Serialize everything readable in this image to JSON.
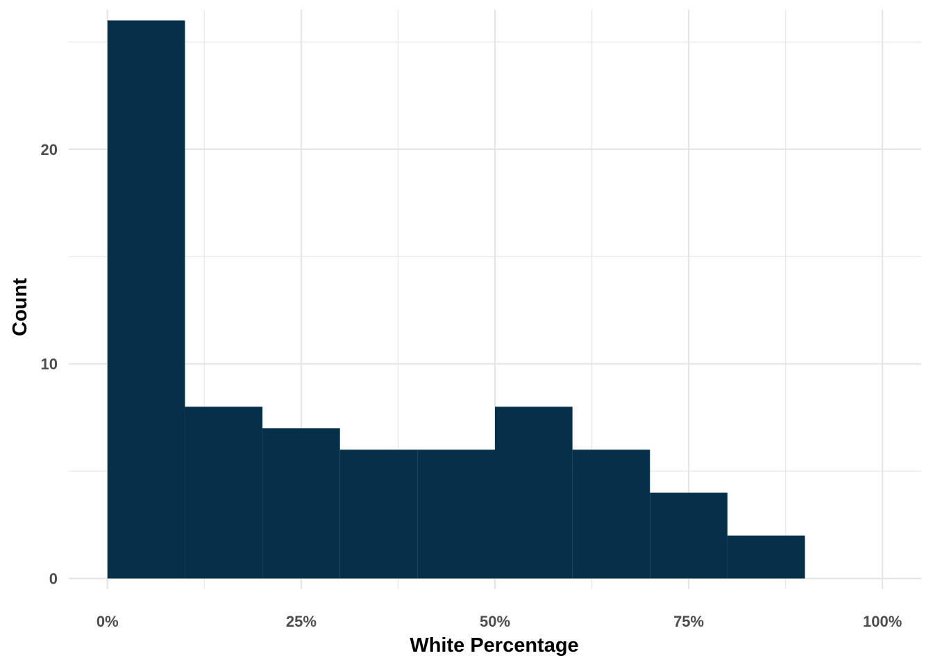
{
  "chart_data": {
    "type": "bar",
    "subtype": "histogram",
    "xlabel": "White Percentage",
    "ylabel": "Count",
    "bin_width": 0.1,
    "bins": [
      {
        "x0": 0.0,
        "x1": 0.1,
        "count": 26
      },
      {
        "x0": 0.1,
        "x1": 0.2,
        "count": 8
      },
      {
        "x0": 0.2,
        "x1": 0.3,
        "count": 7
      },
      {
        "x0": 0.3,
        "x1": 0.4,
        "count": 6
      },
      {
        "x0": 0.4,
        "x1": 0.5,
        "count": 6
      },
      {
        "x0": 0.5,
        "x1": 0.6,
        "count": 8
      },
      {
        "x0": 0.6,
        "x1": 0.7,
        "count": 6
      },
      {
        "x0": 0.7,
        "x1": 0.8,
        "count": 4
      },
      {
        "x0": 0.8,
        "x1": 0.9,
        "count": 2
      }
    ],
    "xlim": [
      -0.05,
      1.05
    ],
    "ylim": [
      -0.5,
      26.5
    ],
    "x_ticks": [
      0,
      0.25,
      0.5,
      0.75,
      1.0
    ],
    "x_tick_labels": [
      "0%",
      "25%",
      "50%",
      "75%",
      "100%"
    ],
    "x_minor_ticks": [
      0.125,
      0.375,
      0.625,
      0.875
    ],
    "y_ticks": [
      0,
      10,
      20
    ],
    "y_tick_labels": [
      "0",
      "10",
      "20"
    ],
    "y_minor_ticks": [
      5,
      15,
      25
    ],
    "grid": true,
    "colors": {
      "bar": "#062f4a",
      "grid": "#e5e5e5",
      "tick_text": "#4d4d4d",
      "title_text": "#000000"
    }
  }
}
